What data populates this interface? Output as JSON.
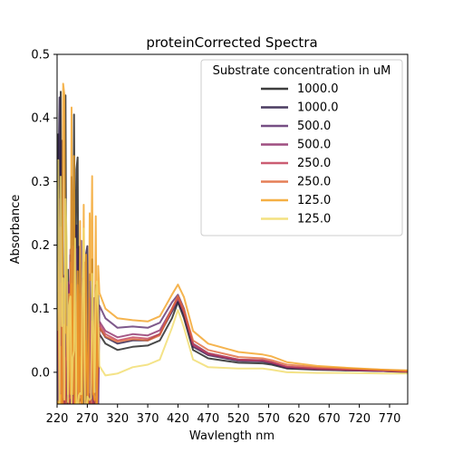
{
  "chart_data": {
    "type": "line",
    "title": "proteinCorrected Spectra",
    "xlabel": "Wavlength nm",
    "ylabel": "Absorbance",
    "xlim": [
      220,
      800
    ],
    "ylim": [
      -0.05,
      0.5
    ],
    "xticks": [
      220,
      270,
      320,
      370,
      420,
      470,
      520,
      570,
      620,
      670,
      720,
      770
    ],
    "yticks": [
      0.0,
      0.1,
      0.2,
      0.3,
      0.4,
      0.5
    ],
    "ytick_labels": [
      "0.0",
      "0.1",
      "0.2",
      "0.3",
      "0.4",
      "0.5"
    ],
    "grid": false,
    "legend": {
      "title": "Substrate concentration in uM",
      "placement": "top-right"
    },
    "series": [
      {
        "name": "1000.0",
        "color": "#1c1c1c",
        "values": [
          [
            290,
            0.06
          ],
          [
            300,
            0.045
          ],
          [
            320,
            0.035
          ],
          [
            345,
            0.04
          ],
          [
            370,
            0.042
          ],
          [
            390,
            0.05
          ],
          [
            410,
            0.085
          ],
          [
            420,
            0.11
          ],
          [
            430,
            0.085
          ],
          [
            445,
            0.035
          ],
          [
            470,
            0.022
          ],
          [
            520,
            0.015
          ],
          [
            560,
            0.014
          ],
          [
            575,
            0.012
          ],
          [
            600,
            0.006
          ],
          [
            650,
            0.004
          ],
          [
            700,
            0.003
          ],
          [
            760,
            0.002
          ],
          [
            800,
            0.0
          ]
        ]
      },
      {
        "name": "1000.0",
        "color": "#2b1a45",
        "values": [
          [
            290,
            0.07
          ],
          [
            300,
            0.055
          ],
          [
            320,
            0.045
          ],
          [
            345,
            0.05
          ],
          [
            370,
            0.05
          ],
          [
            390,
            0.06
          ],
          [
            410,
            0.095
          ],
          [
            420,
            0.112
          ],
          [
            430,
            0.09
          ],
          [
            445,
            0.04
          ],
          [
            470,
            0.027
          ],
          [
            520,
            0.018
          ],
          [
            560,
            0.017
          ],
          [
            575,
            0.014
          ],
          [
            600,
            0.007
          ],
          [
            650,
            0.005
          ],
          [
            700,
            0.003
          ],
          [
            760,
            0.002
          ],
          [
            800,
            0.001
          ]
        ]
      },
      {
        "name": "500.0",
        "color": "#5e2f6e",
        "values": [
          [
            290,
            0.105
          ],
          [
            300,
            0.085
          ],
          [
            320,
            0.07
          ],
          [
            345,
            0.072
          ],
          [
            370,
            0.07
          ],
          [
            390,
            0.078
          ],
          [
            410,
            0.11
          ],
          [
            420,
            0.122
          ],
          [
            430,
            0.1
          ],
          [
            445,
            0.045
          ],
          [
            470,
            0.03
          ],
          [
            520,
            0.02
          ],
          [
            560,
            0.019
          ],
          [
            575,
            0.016
          ],
          [
            600,
            0.008
          ],
          [
            650,
            0.006
          ],
          [
            700,
            0.004
          ],
          [
            760,
            0.003
          ],
          [
            800,
            0.001
          ]
        ]
      },
      {
        "name": "500.0",
        "color": "#8e2f6a",
        "values": [
          [
            290,
            0.08
          ],
          [
            300,
            0.065
          ],
          [
            320,
            0.055
          ],
          [
            345,
            0.06
          ],
          [
            370,
            0.058
          ],
          [
            390,
            0.066
          ],
          [
            410,
            0.1
          ],
          [
            420,
            0.118
          ],
          [
            430,
            0.095
          ],
          [
            445,
            0.042
          ],
          [
            470,
            0.028
          ],
          [
            520,
            0.019
          ],
          [
            560,
            0.018
          ],
          [
            575,
            0.015
          ],
          [
            600,
            0.008
          ],
          [
            650,
            0.005
          ],
          [
            700,
            0.004
          ],
          [
            760,
            0.002
          ],
          [
            800,
            0.001
          ]
        ]
      },
      {
        "name": "250.0",
        "color": "#c2415a",
        "values": [
          [
            290,
            0.075
          ],
          [
            300,
            0.06
          ],
          [
            320,
            0.05
          ],
          [
            345,
            0.055
          ],
          [
            370,
            0.053
          ],
          [
            390,
            0.06
          ],
          [
            410,
            0.098
          ],
          [
            420,
            0.117
          ],
          [
            430,
            0.094
          ],
          [
            445,
            0.044
          ],
          [
            470,
            0.03
          ],
          [
            520,
            0.02
          ],
          [
            560,
            0.019
          ],
          [
            575,
            0.016
          ],
          [
            600,
            0.009
          ],
          [
            650,
            0.006
          ],
          [
            700,
            0.004
          ],
          [
            760,
            0.003
          ],
          [
            800,
            0.001
          ]
        ]
      },
      {
        "name": "250.0",
        "color": "#e0683a",
        "values": [
          [
            290,
            0.07
          ],
          [
            300,
            0.056
          ],
          [
            320,
            0.048
          ],
          [
            345,
            0.052
          ],
          [
            370,
            0.05
          ],
          [
            390,
            0.058
          ],
          [
            410,
            0.1
          ],
          [
            420,
            0.12
          ],
          [
            430,
            0.098
          ],
          [
            445,
            0.05
          ],
          [
            470,
            0.035
          ],
          [
            520,
            0.024
          ],
          [
            560,
            0.022
          ],
          [
            575,
            0.019
          ],
          [
            600,
            0.012
          ],
          [
            650,
            0.008
          ],
          [
            700,
            0.006
          ],
          [
            760,
            0.004
          ],
          [
            800,
            0.002
          ]
        ]
      },
      {
        "name": "125.0",
        "color": "#f3a123",
        "values": [
          [
            290,
            0.125
          ],
          [
            300,
            0.1
          ],
          [
            320,
            0.085
          ],
          [
            345,
            0.082
          ],
          [
            370,
            0.08
          ],
          [
            390,
            0.088
          ],
          [
            410,
            0.122
          ],
          [
            420,
            0.138
          ],
          [
            430,
            0.118
          ],
          [
            445,
            0.065
          ],
          [
            470,
            0.045
          ],
          [
            520,
            0.032
          ],
          [
            560,
            0.028
          ],
          [
            575,
            0.025
          ],
          [
            600,
            0.016
          ],
          [
            650,
            0.01
          ],
          [
            700,
            0.007
          ],
          [
            760,
            0.004
          ],
          [
            800,
            0.003
          ]
        ]
      },
      {
        "name": "125.0",
        "color": "#f1dc6a",
        "values": [
          [
            290,
            0.01
          ],
          [
            300,
            -0.005
          ],
          [
            320,
            -0.002
          ],
          [
            345,
            0.008
          ],
          [
            370,
            0.012
          ],
          [
            390,
            0.02
          ],
          [
            410,
            0.07
          ],
          [
            420,
            0.098
          ],
          [
            430,
            0.07
          ],
          [
            445,
            0.02
          ],
          [
            470,
            0.008
          ],
          [
            520,
            0.006
          ],
          [
            560,
            0.006
          ],
          [
            575,
            0.004
          ],
          [
            600,
            0.0
          ],
          [
            650,
            -0.001
          ],
          [
            700,
            -0.001
          ],
          [
            760,
            -0.002
          ],
          [
            800,
            -0.002
          ]
        ]
      }
    ]
  }
}
